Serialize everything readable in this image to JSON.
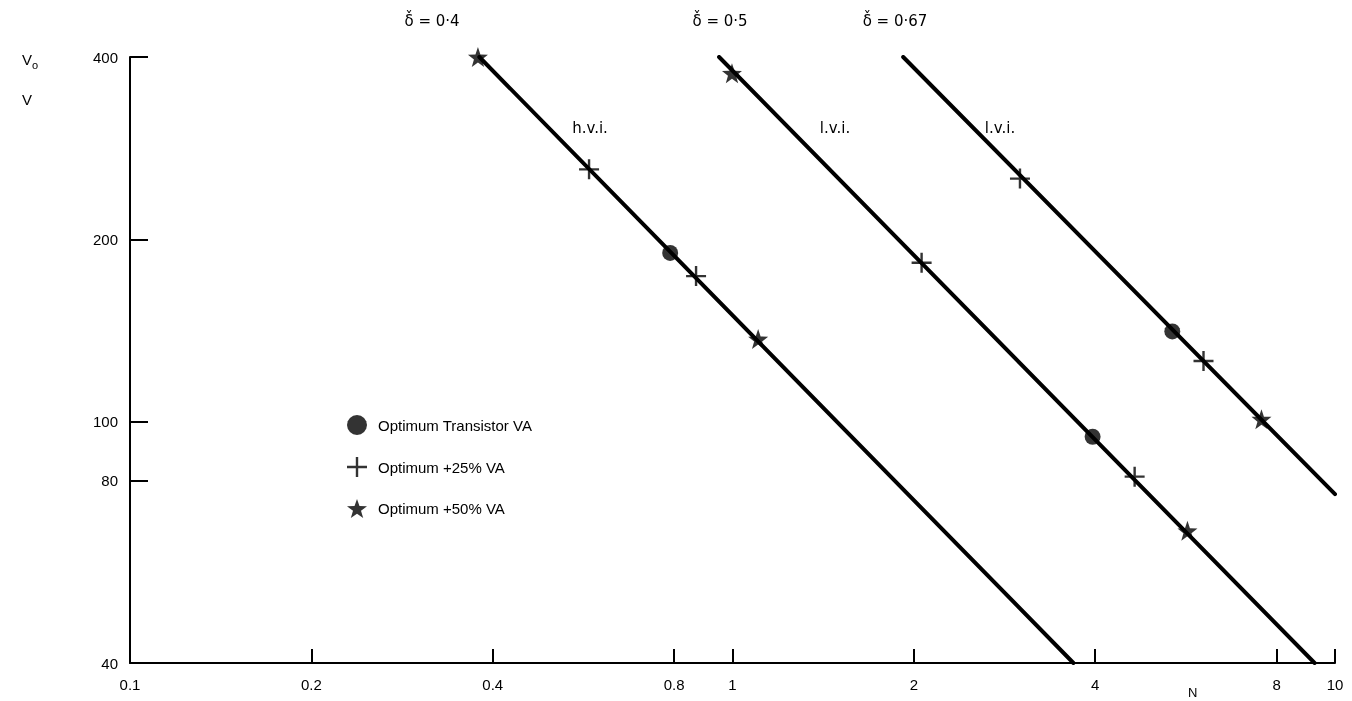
{
  "chart_data": {
    "type": "line",
    "xlabel": "N",
    "ylabel": "V$_{o}$\nV",
    "log": "xy",
    "xlim": [
      0.1,
      10
    ],
    "ylim": [
      40,
      400
    ],
    "xticks": [
      0.1,
      0.2,
      0.4,
      0.8,
      1,
      2,
      4,
      8,
      10
    ],
    "yticks": [
      40,
      80,
      100,
      200,
      400
    ],
    "legend": "left",
    "series": [
      {
        "color": "#000000",
        "x": [
          0.38,
          3.68
        ],
        "values": [
          400,
          40
        ]
      },
      {
        "color": "#000000",
        "x": [
          0.95,
          9.25
        ],
        "values": [
          400,
          40
        ]
      },
      {
        "color": "#000000",
        "x": [
          1.92,
          10
        ],
        "values": [
          400,
          76
        ]
      },
      {
        "type": "scatter",
        "name": "Optimum Transistor VA",
        "color": "#000000",
        "marker": "circle",
        "x": [
          0.788,
          3.96,
          5.37
        ],
        "values": [
          190,
          94.5,
          141
        ]
      },
      {
        "type": "scatter",
        "name": "Optimum +25% VA",
        "color": "#000000",
        "marker": "cross",
        "x": [
          0.578,
          0.87,
          2.06,
          4.65,
          3.0,
          6.05
        ],
        "values": [
          261,
          174,
          183,
          81.2,
          252,
          126
        ]
      },
      {
        "type": "scatter",
        "name": "Optimum +50% VA",
        "color": "#000000",
        "marker": "star",
        "x": [
          0.378,
          1.103,
          0.998,
          5.69,
          7.55
        ],
        "values": [
          400,
          137,
          376,
          66.1,
          101
        ]
      }
    ],
    "annotations": [
      "δ̌ = 0·4",
      "δ̌ = 0·5",
      "δ̌ = 0·67",
      "h.v.i.",
      "l.v.i.",
      "l.v.i."
    ]
  }
}
